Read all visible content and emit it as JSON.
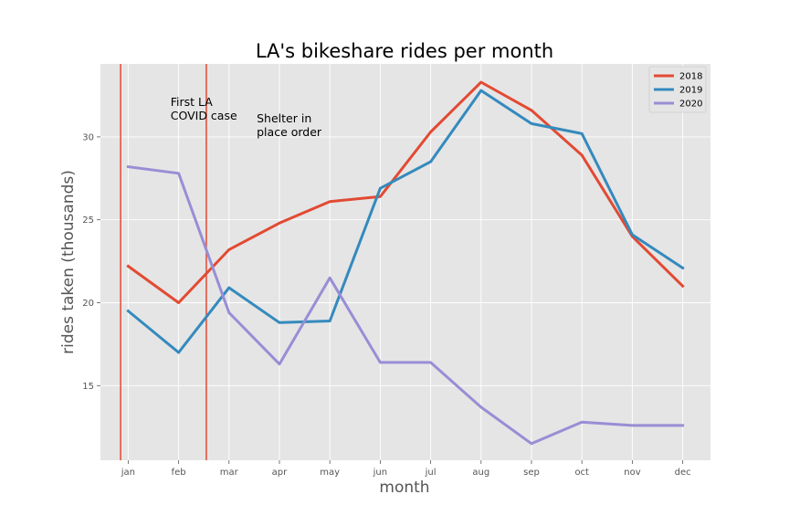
{
  "chart_data": {
    "type": "line",
    "title": "LA's bikeshare rides per month",
    "xlabel": "month",
    "ylabel": "rides taken (thousands)",
    "categories": [
      "jan",
      "feb",
      "mar",
      "apr",
      "may",
      "jun",
      "jul",
      "aug",
      "sep",
      "oct",
      "nov",
      "dec"
    ],
    "xlim": [
      -0.55,
      11.55
    ],
    "ylim": [
      10.5,
      34.4
    ],
    "yticks": [
      15,
      20,
      25,
      30
    ],
    "grid": true,
    "legend_position": "top-right",
    "series": [
      {
        "name": "2018",
        "color": "#E24A33",
        "values": [
          22.2,
          20.0,
          23.2,
          24.8,
          26.1,
          26.4,
          30.3,
          33.3,
          31.6,
          28.9,
          24.0,
          21.0
        ]
      },
      {
        "name": "2019",
        "color": "#348ABD",
        "values": [
          19.5,
          17.0,
          20.9,
          18.8,
          18.9,
          26.9,
          28.5,
          32.8,
          30.8,
          30.2,
          24.1,
          22.1
        ]
      },
      {
        "name": "2020",
        "color": "#988ED5",
        "values": [
          28.2,
          27.8,
          19.4,
          16.3,
          21.5,
          16.4,
          16.4,
          13.7,
          11.5,
          12.8,
          12.6,
          12.6
        ]
      }
    ],
    "vlines": [
      {
        "x": -0.15,
        "x_position": 0.84,
        "color": "#E24A33",
        "label_lines": [
          "First LA",
          "COVID case"
        ]
      },
      {
        "x": 1.55,
        "x_position": 2.55,
        "color": "#E24A33",
        "label_lines": [
          "Shelter in",
          "place order"
        ]
      }
    ]
  }
}
